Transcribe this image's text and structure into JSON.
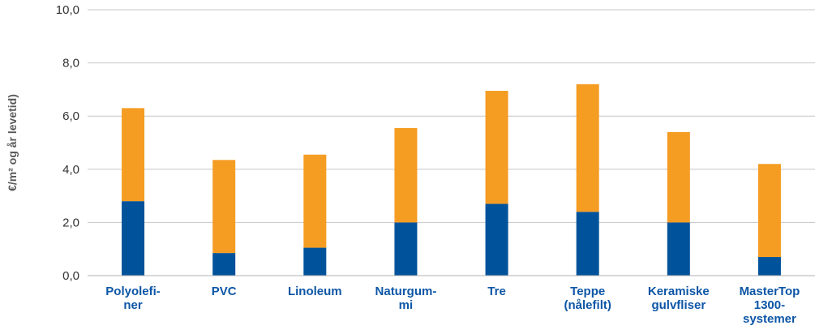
{
  "chart_data": {
    "type": "bar",
    "stacked": true,
    "title": "",
    "xlabel": "",
    "ylabel": "€/m² og år levetid)",
    "ylim": [
      0,
      10
    ],
    "y_ticks": [
      "0,0",
      "2,0",
      "4,0",
      "6,0",
      "8,0",
      "10,0"
    ],
    "y_tick_values": [
      0,
      2,
      4,
      6,
      8,
      10
    ],
    "grid": true,
    "legend": "none",
    "categories": [
      [
        "Polyolefi-",
        "ner"
      ],
      [
        "PVC"
      ],
      [
        "Linoleum"
      ],
      [
        "Naturgum-",
        "mi"
      ],
      [
        "Tre"
      ],
      [
        "Teppe",
        "(nålefilt)"
      ],
      [
        "Keramiske",
        "gulvfliser"
      ],
      [
        "MasterTop",
        "1300-",
        "systemer"
      ]
    ],
    "series": [
      {
        "color": "#00529b",
        "values": [
          2.8,
          0.85,
          1.05,
          2.0,
          2.7,
          2.4,
          2.0,
          0.7
        ]
      },
      {
        "color": "#f59c23",
        "values": [
          3.5,
          3.5,
          3.5,
          3.55,
          4.25,
          4.8,
          3.4,
          3.5
        ]
      }
    ]
  }
}
